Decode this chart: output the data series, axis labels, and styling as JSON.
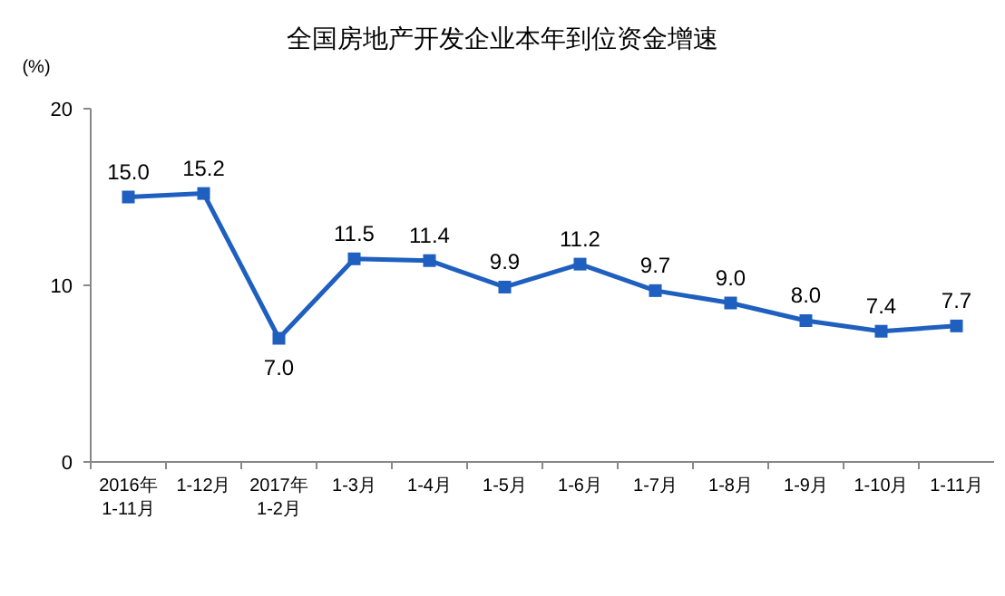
{
  "chart_data": {
    "type": "line",
    "title": "全国房地产开发企业本年到位资金增速",
    "ylabel": "(%)",
    "categories": [
      "2016年\n1-11月",
      "1-12月",
      "2017年\n1-2月",
      "1-3月",
      "1-4月",
      "1-5月",
      "1-6月",
      "1-7月",
      "1-8月",
      "1-9月",
      "1-10月",
      "1-11月"
    ],
    "series": [
      {
        "color": "#1f5fbf",
        "values": [
          15.0,
          15.2,
          7.0,
          11.5,
          11.4,
          9.9,
          11.2,
          9.7,
          9.0,
          8.0,
          7.4,
          7.7
        ],
        "value_labels": [
          "15.0",
          "15.2",
          "7.0",
          "11.5",
          "11.4",
          "9.9",
          "11.2",
          "9.7",
          "9.0",
          "8.0",
          "7.4",
          "7.7"
        ]
      }
    ],
    "ylim": [
      0,
      20
    ],
    "yticks": [
      0,
      10,
      20
    ],
    "marker": "square"
  }
}
